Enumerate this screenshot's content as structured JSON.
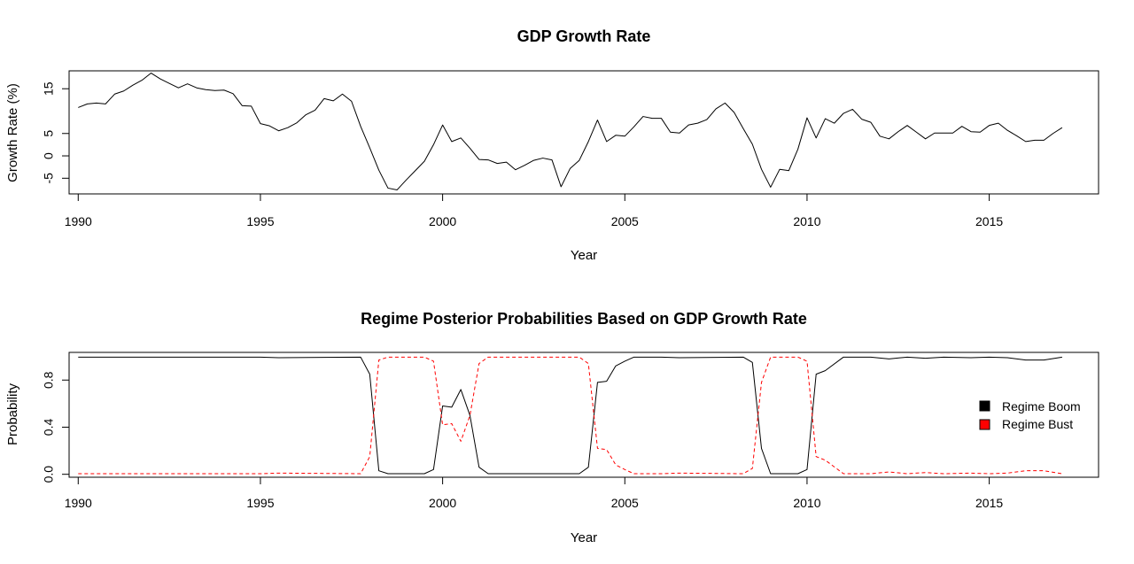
{
  "chart_data": [
    {
      "type": "line",
      "title": "GDP Growth Rate",
      "xlabel": "Year",
      "ylabel": "Growth Rate (%)",
      "xlim": [
        1989.75,
        2018.0
      ],
      "ylim": [
        -8.5,
        19.0
      ],
      "x_ticks": [
        1990,
        1995,
        2000,
        2005,
        2010,
        2015
      ],
      "y_ticks": [
        -5,
        0,
        5,
        15
      ],
      "grid": false,
      "series": [
        {
          "color": "#000000",
          "dash": "solid",
          "x": [
            1990.0,
            1990.25,
            1990.5,
            1990.75,
            1991.0,
            1991.25,
            1991.5,
            1991.75,
            1992.0,
            1992.25,
            1992.5,
            1992.75,
            1993.0,
            1993.25,
            1993.5,
            1993.75,
            1994.0,
            1994.25,
            1994.5,
            1994.75,
            1995.0,
            1995.25,
            1995.5,
            1995.75,
            1996.0,
            1996.25,
            1996.5,
            1996.75,
            1997.0,
            1997.25,
            1997.5,
            1997.75,
            1998.0,
            1998.25,
            1998.5,
            1998.75,
            1999.0,
            1999.25,
            1999.5,
            1999.75,
            2000.0,
            2000.25,
            2000.5,
            2000.75,
            2001.0,
            2001.25,
            2001.5,
            2001.75,
            2002.0,
            2002.25,
            2002.5,
            2002.75,
            2003.0,
            2003.25,
            2003.5,
            2003.75,
            2004.0,
            2004.25,
            2004.5,
            2004.75,
            2005.0,
            2005.25,
            2005.5,
            2005.75,
            2006.0,
            2006.25,
            2006.5,
            2006.75,
            2007.0,
            2007.25,
            2007.5,
            2007.75,
            2008.0,
            2008.25,
            2008.5,
            2008.75,
            2009.0,
            2009.25,
            2009.5,
            2009.75,
            2010.0,
            2010.25,
            2010.5,
            2010.75,
            2011.0,
            2011.25,
            2011.5,
            2011.75,
            2012.0,
            2012.25,
            2012.5,
            2012.75,
            2013.0,
            2013.25,
            2013.5,
            2013.75,
            2014.0,
            2014.25,
            2014.5,
            2014.75,
            2015.0,
            2015.25,
            2015.5,
            2015.75,
            2016.0,
            2016.25,
            2016.5,
            2016.75,
            2017.0
          ],
          "y": [
            10.8,
            11.6,
            11.8,
            11.6,
            13.8,
            14.5,
            15.8,
            16.9,
            18.5,
            17.2,
            16.2,
            15.2,
            16.1,
            15.2,
            14.8,
            14.6,
            14.7,
            13.9,
            11.2,
            11.1,
            7.2,
            6.7,
            5.6,
            6.3,
            7.4,
            9.2,
            10.2,
            12.8,
            12.3,
            13.8,
            12.2,
            6.6,
            1.8,
            -3.2,
            -7.2,
            -7.6,
            -5.4,
            -3.3,
            -1.2,
            2.5,
            6.9,
            3.2,
            4.0,
            1.7,
            -0.8,
            -0.9,
            -1.7,
            -1.4,
            -3.1,
            -2.1,
            -1.0,
            -0.5,
            -0.9,
            -6.9,
            -2.8,
            -1.0,
            3.2,
            8.0,
            3.2,
            4.6,
            4.4,
            6.5,
            8.8,
            8.4,
            8.4,
            5.3,
            5.1,
            6.9,
            7.3,
            8.1,
            10.5,
            11.8,
            9.7,
            6.1,
            2.6,
            -3.0,
            -7.0,
            -3.0,
            -3.3,
            1.5,
            8.5,
            4.0,
            8.3,
            7.3,
            9.5,
            10.4,
            8.2,
            7.5,
            4.4,
            3.8,
            5.4,
            6.8,
            5.3,
            3.8,
            5.1,
            5.1,
            5.1,
            6.6,
            5.4,
            5.3,
            6.8,
            7.3,
            5.7,
            4.5,
            3.2,
            3.5,
            3.5,
            5.0,
            6.3
          ]
        }
      ]
    },
    {
      "type": "line",
      "title": "Regime Posterior Probabilities Based on GDP Growth Rate",
      "xlabel": "Year",
      "ylabel": "Probability",
      "xlim": [
        1989.75,
        2018.0
      ],
      "ylim": [
        -0.025,
        1.035
      ],
      "x_ticks": [
        1990,
        1995,
        2000,
        2005,
        2010,
        2015
      ],
      "y_ticks": [
        "0.0",
        "0.4",
        "0.8"
      ],
      "grid": false,
      "legend_position": "right",
      "series": [
        {
          "name": "Regime Boom",
          "color": "#000000",
          "dash": "solid",
          "x": [
            1990.0,
            1995.0,
            1995.5,
            1997.75,
            1998.0,
            1998.25,
            1998.5,
            1999.5,
            1999.75,
            2000.0,
            2000.25,
            2000.5,
            2000.75,
            2001.0,
            2001.25,
            2003.75,
            2004.0,
            2004.25,
            2004.5,
            2004.75,
            2005.0,
            2005.25,
            2006.0,
            2006.5,
            2008.25,
            2008.5,
            2008.75,
            2009.0,
            2009.75,
            2010.0,
            2010.25,
            2010.5,
            2011.0,
            2011.75,
            2012.25,
            2012.75,
            2013.25,
            2013.75,
            2014.5,
            2015.0,
            2015.5,
            2016.0,
            2016.5,
            2017.0
          ],
          "y": [
            0.995,
            0.995,
            0.99,
            0.995,
            0.85,
            0.03,
            0.005,
            0.005,
            0.04,
            0.58,
            0.57,
            0.72,
            0.5,
            0.06,
            0.005,
            0.005,
            0.06,
            0.78,
            0.79,
            0.92,
            0.96,
            0.995,
            0.995,
            0.99,
            0.995,
            0.95,
            0.22,
            0.005,
            0.005,
            0.04,
            0.85,
            0.88,
            0.995,
            0.995,
            0.98,
            0.995,
            0.985,
            0.995,
            0.99,
            0.995,
            0.99,
            0.97,
            0.97,
            0.995
          ]
        },
        {
          "name": "Regime Bust",
          "color": "#ff0000",
          "dash": "dashed",
          "x": [
            1990.0,
            1995.0,
            1995.5,
            1997.75,
            1998.0,
            1998.25,
            1998.5,
            1999.5,
            1999.75,
            2000.0,
            2000.25,
            2000.5,
            2000.75,
            2001.0,
            2001.25,
            2003.75,
            2004.0,
            2004.25,
            2004.5,
            2004.75,
            2005.0,
            2005.25,
            2006.0,
            2006.5,
            2008.25,
            2008.5,
            2008.75,
            2009.0,
            2009.75,
            2010.0,
            2010.25,
            2010.5,
            2011.0,
            2011.75,
            2012.25,
            2012.75,
            2013.25,
            2013.75,
            2014.5,
            2015.0,
            2015.5,
            2016.0,
            2016.5,
            2017.0
          ],
          "y": [
            0.005,
            0.005,
            0.01,
            0.005,
            0.15,
            0.97,
            0.995,
            0.995,
            0.96,
            0.42,
            0.43,
            0.28,
            0.5,
            0.94,
            0.995,
            0.995,
            0.94,
            0.22,
            0.21,
            0.08,
            0.04,
            0.005,
            0.005,
            0.01,
            0.005,
            0.05,
            0.78,
            0.995,
            0.995,
            0.96,
            0.15,
            0.12,
            0.005,
            0.005,
            0.02,
            0.005,
            0.015,
            0.005,
            0.01,
            0.005,
            0.01,
            0.03,
            0.03,
            0.005
          ]
        }
      ]
    }
  ]
}
